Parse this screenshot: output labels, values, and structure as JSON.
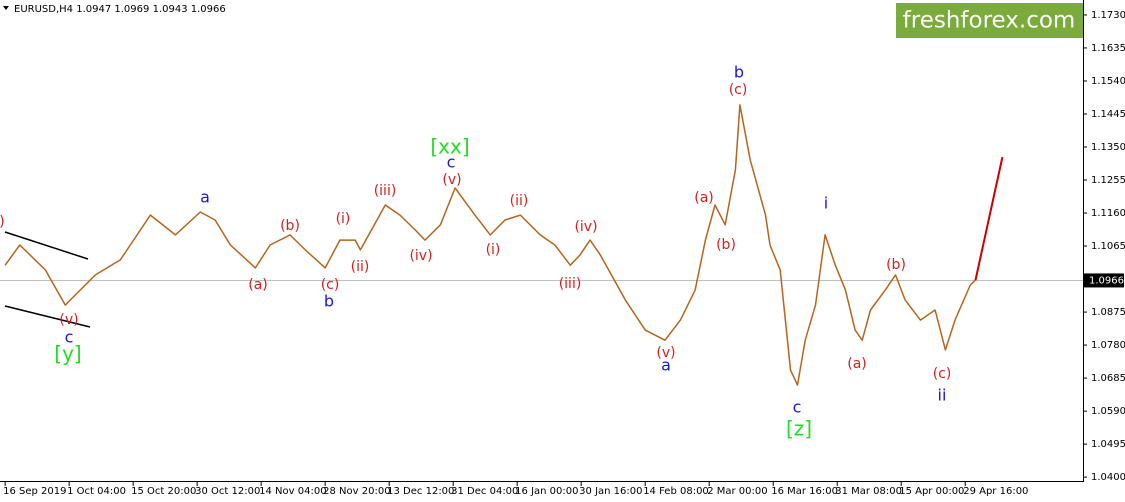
{
  "header": {
    "symbol": "EURUSD,H4",
    "open": 1.0947,
    "high": 1.0969,
    "low": 1.0943,
    "close": 1.0966
  },
  "logo": "freshforex.com",
  "chart_data": {
    "type": "line",
    "color": "#b5651d",
    "grid": false,
    "x": [
      0,
      0.23,
      0.63,
      0.94,
      1.02,
      1.41,
      1.8,
      2.27,
      2.66,
      3.05,
      3.28,
      3.52,
      3.91,
      4.14,
      4.45,
      4.69,
      5.0,
      5.23,
      5.47,
      5.55,
      5.94,
      6.17,
      6.41,
      6.56,
      6.8,
      7.03,
      7.34,
      7.58,
      7.81,
      8.05,
      8.36,
      8.59,
      8.83,
      8.98,
      9.14,
      9.3,
      9.69,
      10.0,
      10.31,
      10.55,
      10.78,
      10.94,
      11.09,
      11.25,
      11.41,
      11.48,
      11.64,
      11.88,
      11.95,
      12.11,
      12.27,
      12.38,
      12.5,
      12.66,
      12.81,
      12.97,
      13.13,
      13.28,
      13.39,
      13.52,
      13.75,
      13.91,
      14.06,
      14.3,
      14.53,
      14.69,
      14.84,
      15.08,
      15.16
    ],
    "values": [
      1.101,
      1.1068,
      1.0996,
      1.0895,
      1.091,
      1.0982,
      1.1025,
      1.1154,
      1.1097,
      1.1163,
      1.114,
      1.1068,
      1.1002,
      1.1068,
      1.1097,
      1.1054,
      1.1002,
      1.1082,
      1.1082,
      1.1054,
      1.1183,
      1.1154,
      1.1111,
      1.1082,
      1.1126,
      1.1232,
      1.1154,
      1.1097,
      1.114,
      1.1154,
      1.1097,
      1.1068,
      1.101,
      1.1039,
      1.1082,
      1.1039,
      1.091,
      1.0823,
      1.0794,
      1.0852,
      1.0938,
      1.1082,
      1.1183,
      1.1126,
      1.1284,
      1.1471,
      1.1313,
      1.1154,
      1.1068,
      1.0996,
      1.0708,
      1.0665,
      1.0794,
      1.0895,
      1.1097,
      1.101,
      1.0938,
      1.0823,
      1.0794,
      1.0881,
      1.0938,
      1.0982,
      1.091,
      1.0852,
      1.0881,
      1.0766,
      1.0852,
      1.0953,
      1.0967
    ],
    "projection": {
      "color": "#cc0000",
      "x": [
        15.16,
        15.58
      ],
      "values": [
        1.0967,
        1.1321
      ]
    },
    "xlim": [
      -0.08,
      16.84
    ],
    "xticks": [
      {
        "value": 0,
        "label": "16 Sep 2019"
      },
      {
        "value": 1,
        "label": "1 Oct 04:00"
      },
      {
        "value": 2,
        "label": "15 Oct 20:00"
      },
      {
        "value": 3,
        "label": "30 Oct 12:00"
      },
      {
        "value": 4,
        "label": "14 Nov 04:00"
      },
      {
        "value": 5,
        "label": "28 Nov 20:00"
      },
      {
        "value": 6,
        "label": "13 Dec 12:00"
      },
      {
        "value": 7,
        "label": "31 Dec 04:00"
      },
      {
        "value": 8,
        "label": "16 Jan 00:00"
      },
      {
        "value": 9,
        "label": "30 Jan 16:00"
      },
      {
        "value": 10,
        "label": "14 Feb 08:00"
      },
      {
        "value": 11,
        "label": "2 Mar 00:00"
      },
      {
        "value": 12,
        "label": "16 Mar 16:00"
      },
      {
        "value": 13,
        "label": "31 Mar 08:00"
      },
      {
        "value": 14,
        "label": "15 Apr 00:00"
      },
      {
        "value": 15,
        "label": "29 Apr 16:00"
      }
    ],
    "ylim": [
      1.0386,
      1.1773
    ],
    "yticks": [
      {
        "value": 1.173,
        "label": "1.1730"
      },
      {
        "value": 1.1635,
        "label": "1.1635"
      },
      {
        "value": 1.154,
        "label": "1.1540"
      },
      {
        "value": 1.1445,
        "label": "1.1445"
      },
      {
        "value": 1.135,
        "label": "1.1350"
      },
      {
        "value": 1.1255,
        "label": "1.1255"
      },
      {
        "value": 1.116,
        "label": "1.1160"
      },
      {
        "value": 1.1065,
        "label": "1.1065"
      },
      {
        "value": 1.0875,
        "label": "1.0875"
      },
      {
        "value": 1.078,
        "label": "1.0780"
      },
      {
        "value": 1.0685,
        "label": "1.0685"
      },
      {
        "value": 1.059,
        "label": "1.0590"
      },
      {
        "value": 1.0495,
        "label": "1.0495"
      },
      {
        "value": 1.04,
        "label": "1.0400"
      }
    ],
    "annotations": [
      {
        "text": ")",
        "color": "#d42020"
      },
      {
        "text": "(v)",
        "color": "#d42020"
      },
      {
        "text": "c",
        "color": "#1a1acc"
      },
      {
        "text": "[y]",
        "color": "#22dd22"
      },
      {
        "text": "a",
        "color": "#1a1acc"
      },
      {
        "text": "(a)",
        "color": "#d42020"
      },
      {
        "text": "(b)",
        "color": "#d42020"
      },
      {
        "text": "(c)",
        "color": "#d42020"
      },
      {
        "text": "b",
        "color": "#1a1acc"
      },
      {
        "text": "(i)",
        "color": "#d42020"
      },
      {
        "text": "(ii)",
        "color": "#d42020"
      },
      {
        "text": "(iii)",
        "color": "#d42020"
      },
      {
        "text": "(iv)",
        "color": "#d42020"
      },
      {
        "text": "[xx]",
        "color": "#22dd22"
      },
      {
        "text": "c",
        "color": "#1a1acc"
      },
      {
        "text": "(v)",
        "color": "#d42020"
      },
      {
        "text": "(ii)",
        "color": "#d42020"
      },
      {
        "text": "(i)",
        "color": "#d42020"
      },
      {
        "text": "(iii)",
        "color": "#d42020"
      },
      {
        "text": "(iv)",
        "color": "#d42020"
      },
      {
        "text": "(v)",
        "color": "#d42020"
      },
      {
        "text": "a",
        "color": "#1a1acc"
      },
      {
        "text": "(a)",
        "color": "#d42020"
      },
      {
        "text": "(b)",
        "color": "#d42020"
      },
      {
        "text": "b",
        "color": "#1a1acc"
      },
      {
        "text": "(c)",
        "color": "#d42020"
      },
      {
        "text": "c",
        "color": "#1a1acc"
      },
      {
        "text": "[z]",
        "color": "#22dd22"
      },
      {
        "text": "i",
        "color": "#1a1acc"
      },
      {
        "text": "(a)",
        "color": "#d42020"
      },
      {
        "text": "(b)",
        "color": "#d42020"
      },
      {
        "text": "(c)",
        "color": "#d42020"
      },
      {
        "text": "ii",
        "color": "#1a1acc"
      }
    ]
  }
}
